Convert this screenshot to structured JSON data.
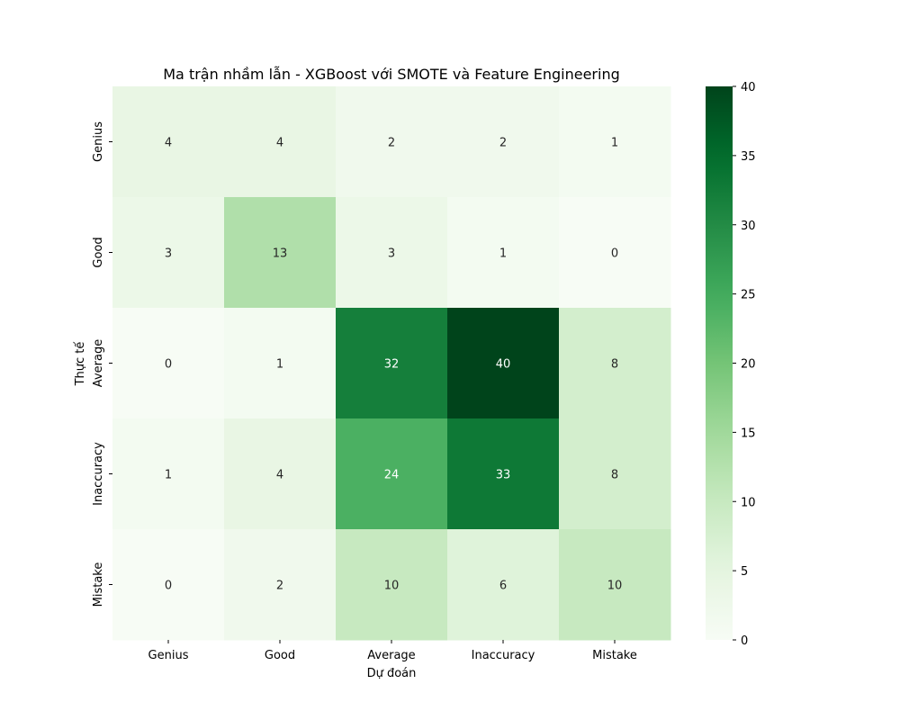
{
  "chart_data": {
    "type": "heatmap",
    "title": "Ma trận nhầm lẫn - XGBoost với SMOTE và Feature Engineering",
    "xlabel": "Dự đoán",
    "ylabel": "Thực tế",
    "x_categories": [
      "Genius",
      "Good",
      "Average",
      "Inaccuracy",
      "Mistake"
    ],
    "y_categories": [
      "Genius",
      "Good",
      "Average",
      "Inaccuracy",
      "Mistake"
    ],
    "values": [
      [
        4,
        4,
        2,
        2,
        1
      ],
      [
        3,
        13,
        3,
        1,
        0
      ],
      [
        0,
        1,
        32,
        40,
        8
      ],
      [
        1,
        4,
        24,
        33,
        8
      ],
      [
        0,
        2,
        10,
        6,
        10
      ]
    ],
    "colorbar": {
      "min": 0,
      "max": 40,
      "ticks": [
        0,
        5,
        10,
        15,
        20,
        25,
        30,
        35,
        40
      ],
      "colormap": "Greens"
    }
  }
}
